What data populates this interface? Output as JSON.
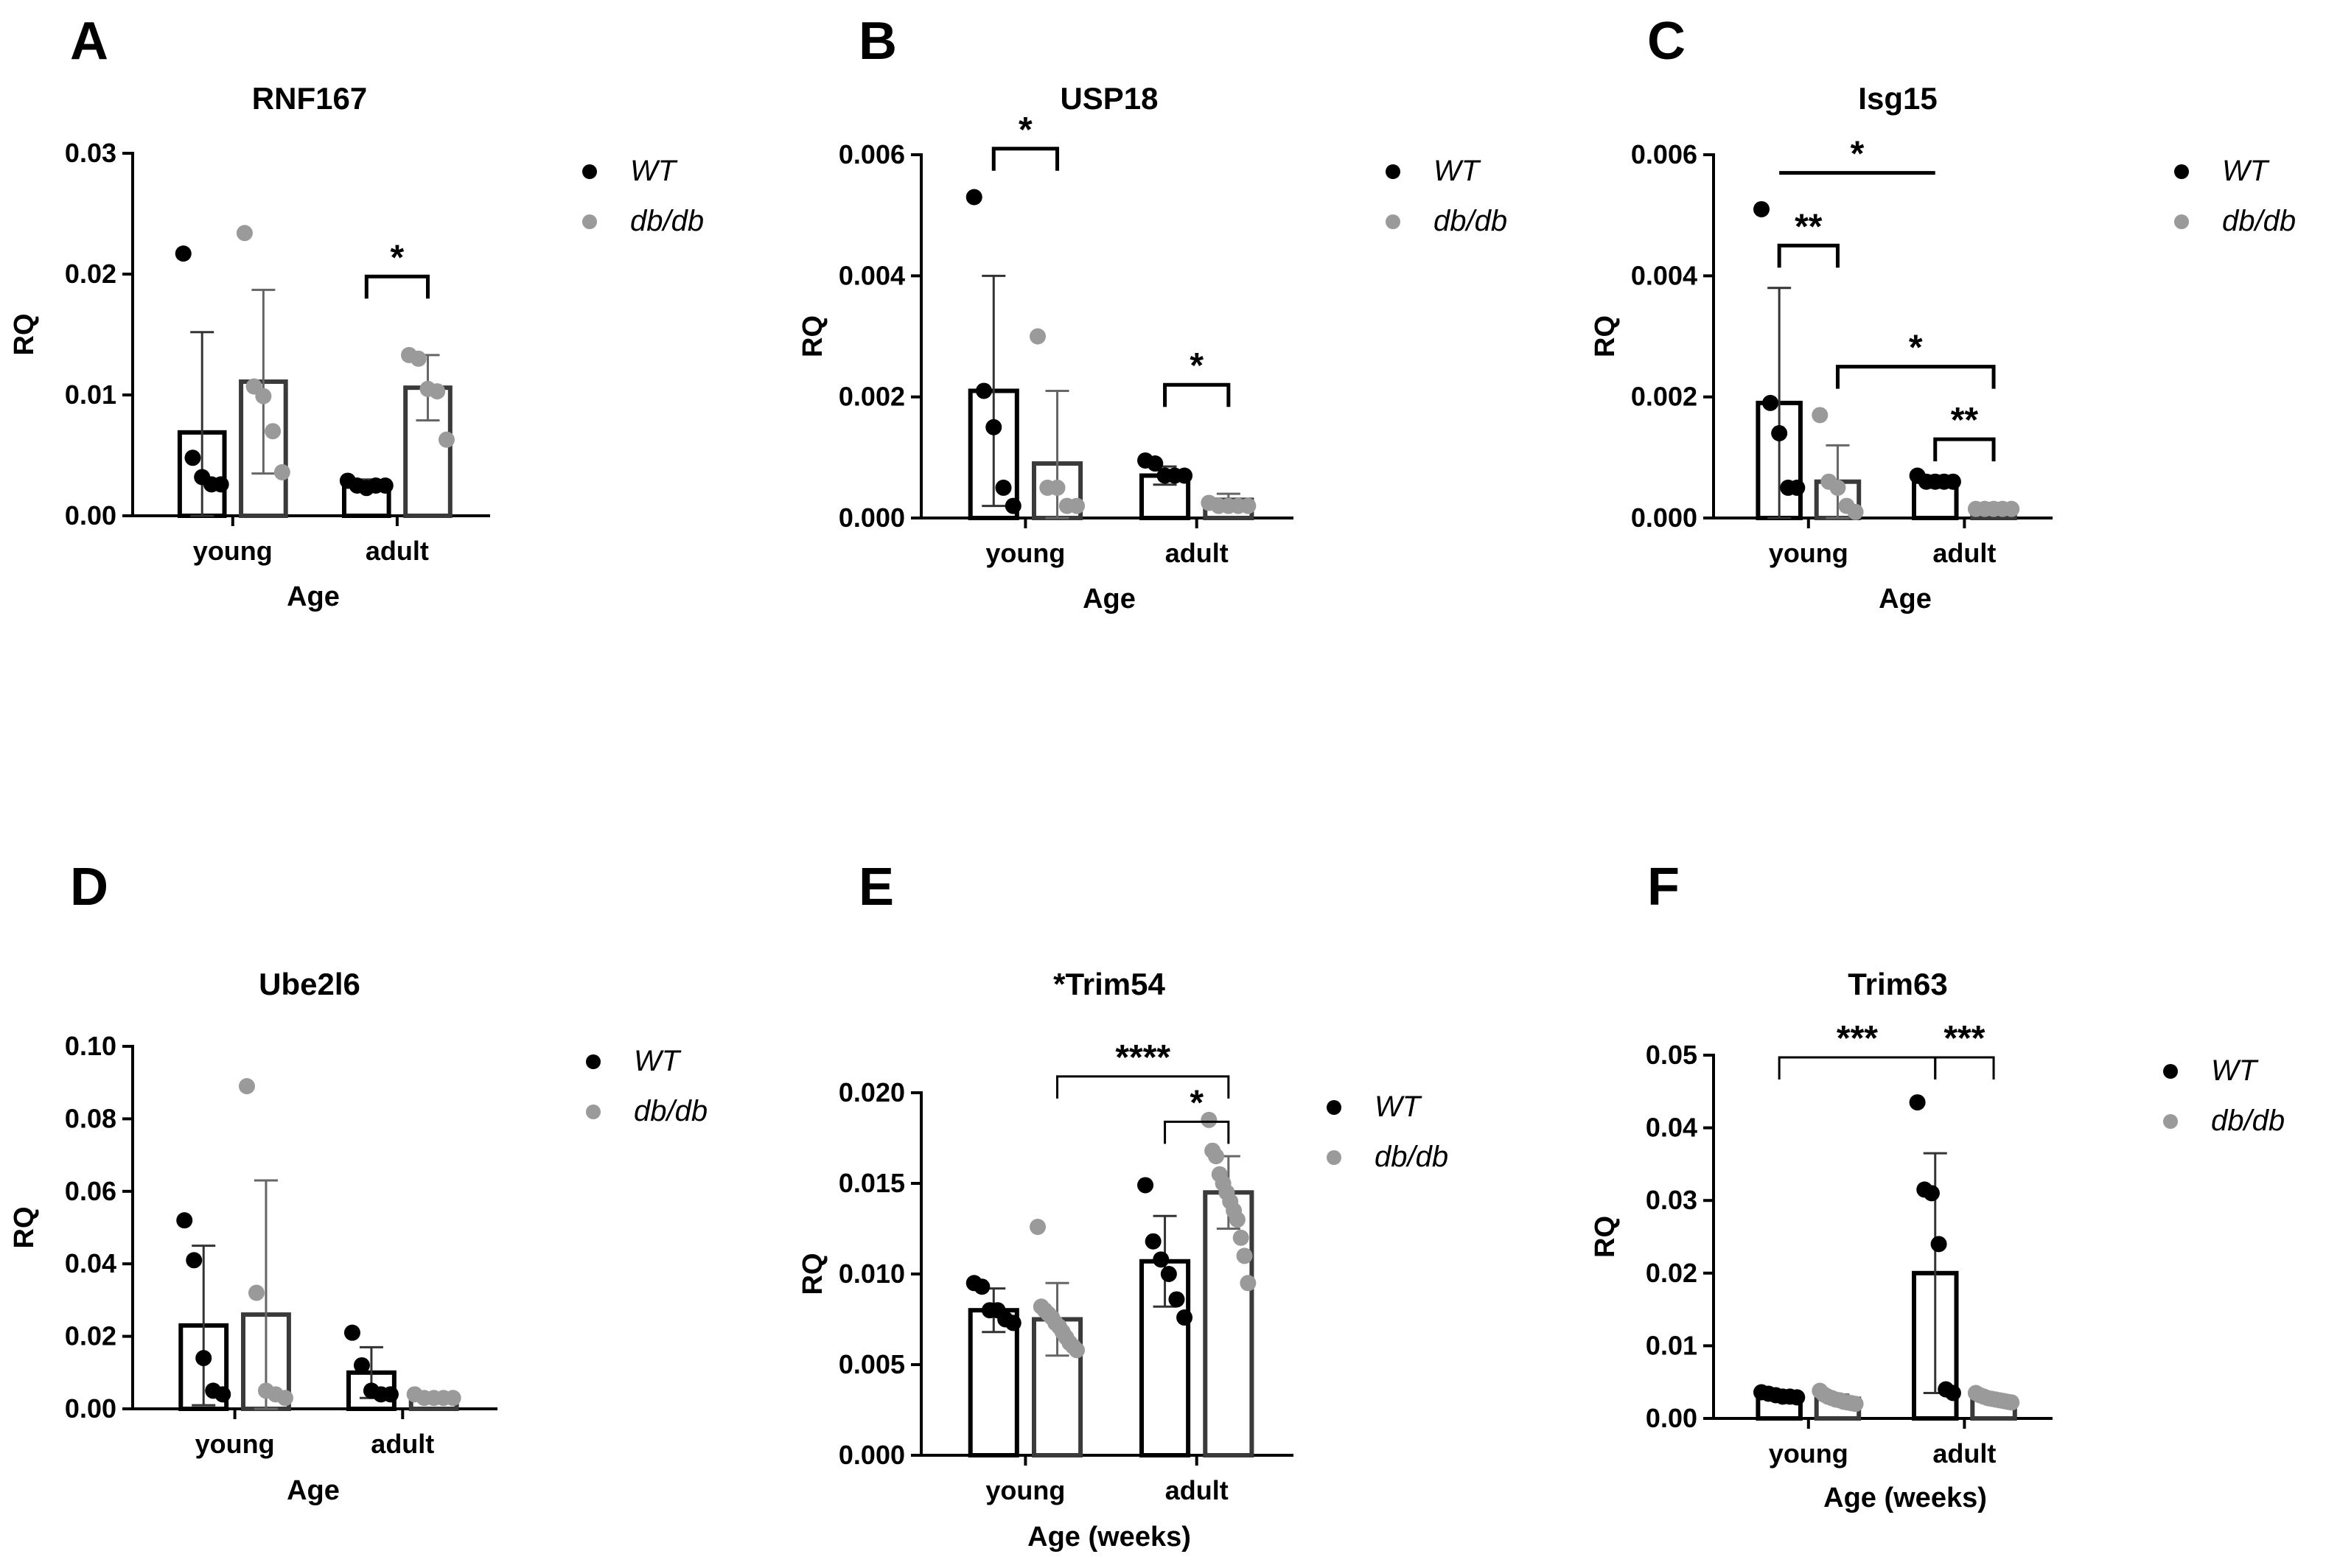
{
  "colors": {
    "wt": "#000000",
    "dbdb": "#9a9a9a",
    "wt_bar": "#000000",
    "dbdb_bar": "#3a3a3a"
  },
  "chart_data": [
    {
      "type": "bar",
      "letter": "A",
      "title": "RNF167",
      "xlabel": "Age",
      "ylabel": "RQ",
      "categories": [
        "young",
        "adult"
      ],
      "ylim": [
        0,
        0.03
      ],
      "yticks": [
        "0.00",
        "0.01",
        "0.02",
        "0.03"
      ],
      "ytick_values": [
        0,
        0.01,
        0.02,
        0.03
      ],
      "legend": [
        "WT",
        "db/db"
      ],
      "series": [
        {
          "name": "WT",
          "values": [
            0.0069,
            0.0026
          ],
          "errors": [
            0.0083,
            0.0004
          ],
          "points": [
            [
              0.0217,
              0.0048,
              0.0032,
              0.0026,
              0.0026
            ],
            [
              0.0029,
              0.0025,
              0.0023,
              0.0025,
              0.0025
            ]
          ]
        },
        {
          "name": "db/db",
          "values": [
            0.0111,
            0.0106
          ],
          "errors": [
            0.0076,
            0.0027
          ],
          "points": [
            [
              0.0234,
              0.0107,
              0.0099,
              0.007,
              0.0036
            ],
            [
              0.0133,
              0.013,
              0.0105,
              0.0103,
              0.0063
            ]
          ]
        }
      ],
      "sig": [
        {
          "label": "*",
          "from": [
            1,
            0
          ],
          "to": [
            1,
            1
          ],
          "y": 0.0198,
          "style": "bracket"
        }
      ]
    },
    {
      "type": "bar",
      "letter": "B",
      "title": "USP18",
      "xlabel": "Age",
      "ylabel": "RQ",
      "categories": [
        "young",
        "adult"
      ],
      "ylim": [
        0,
        0.006
      ],
      "yticks": [
        "0.000",
        "0.002",
        "0.004",
        "0.006"
      ],
      "ytick_values": [
        0,
        0.002,
        0.004,
        0.006
      ],
      "legend": [
        "WT",
        "db/db"
      ],
      "series": [
        {
          "name": "WT",
          "values": [
            0.0021,
            0.0007
          ],
          "errors": [
            0.0019,
            0.00015
          ],
          "points": [
            [
              0.0053,
              0.0021,
              0.0015,
              0.0005,
              0.0002
            ],
            [
              0.00095,
              0.0009,
              0.0007,
              0.0007,
              0.0007
            ]
          ]
        },
        {
          "name": "db/db",
          "values": [
            0.0009,
            0.0003
          ],
          "errors": [
            0.0012,
            0.0001
          ],
          "points": [
            [
              0.003,
              0.0005,
              0.0005,
              0.0002,
              0.0002
            ],
            [
              0.00025,
              0.0002,
              0.0002,
              0.0002,
              0.0002
            ]
          ]
        }
      ],
      "sig": [
        {
          "label": "*",
          "from": [
            0,
            0
          ],
          "to": [
            0,
            1
          ],
          "y": 0.0061,
          "style": "bracket"
        },
        {
          "label": "*",
          "from": [
            1,
            0
          ],
          "to": [
            1,
            1
          ],
          "y": 0.0022,
          "style": "bracket"
        }
      ]
    },
    {
      "type": "bar",
      "letter": "C",
      "title": "Isg15",
      "xlabel": "Age",
      "ylabel": "RQ",
      "categories": [
        "young",
        "adult"
      ],
      "ylim": [
        0,
        0.006
      ],
      "yticks": [
        "0.000",
        "0.002",
        "0.004",
        "0.006"
      ],
      "ytick_values": [
        0,
        0.002,
        0.004,
        0.006
      ],
      "legend": [
        "WT",
        "db/db"
      ],
      "series": [
        {
          "name": "WT",
          "values": [
            0.0019,
            0.0006
          ],
          "errors": [
            0.0019,
            0.0001
          ],
          "points": [
            [
              0.0051,
              0.0019,
              0.0014,
              0.0005,
              0.0005
            ],
            [
              0.0007,
              0.0006,
              0.0006,
              0.0006,
              0.0006
            ]
          ]
        },
        {
          "name": "db/db",
          "values": [
            0.0006,
            0.0002
          ],
          "errors": [
            0.0006,
            5e-05
          ],
          "points": [
            [
              0.0017,
              0.0006,
              0.0005,
              0.0002,
              0.0001
            ],
            [
              0.00015,
              0.00015,
              0.00015,
              0.00015,
              0.00015
            ]
          ]
        }
      ],
      "sig": [
        {
          "label": "*",
          "from": [
            0,
            0
          ],
          "to": [
            1,
            0
          ],
          "y": 0.0057,
          "style": "line"
        },
        {
          "label": "**",
          "from": [
            0,
            0
          ],
          "to": [
            0,
            1
          ],
          "y": 0.0045,
          "style": "bracket"
        },
        {
          "label": "*",
          "from": [
            0,
            1
          ],
          "to": [
            1,
            1
          ],
          "y": 0.0025,
          "style": "bracket"
        },
        {
          "label": "**",
          "from": [
            1,
            0
          ],
          "to": [
            1,
            1
          ],
          "y": 0.0013,
          "style": "bracket"
        }
      ]
    },
    {
      "type": "bar",
      "letter": "D",
      "title": "Ube2l6",
      "xlabel": "Age",
      "ylabel": "RQ",
      "categories": [
        "young",
        "adult"
      ],
      "ylim": [
        0,
        0.1
      ],
      "yticks": [
        "0.00",
        "0.02",
        "0.04",
        "0.06",
        "0.08",
        "0.10"
      ],
      "ytick_values": [
        0,
        0.02,
        0.04,
        0.06,
        0.08,
        0.1
      ],
      "legend": [
        "WT",
        "db/db"
      ],
      "series": [
        {
          "name": "WT",
          "values": [
            0.023,
            0.01
          ],
          "errors": [
            0.022,
            0.007
          ],
          "points": [
            [
              0.052,
              0.041,
              0.014,
              0.005,
              0.004
            ],
            [
              0.021,
              0.012,
              0.005,
              0.004,
              0.004
            ]
          ]
        },
        {
          "name": "db/db",
          "values": [
            0.026,
            0.003
          ],
          "errors": [
            0.037,
            0.001
          ],
          "points": [
            [
              0.089,
              0.032,
              0.005,
              0.004,
              0.003
            ],
            [
              0.004,
              0.003,
              0.003,
              0.003,
              0.003
            ]
          ]
        }
      ],
      "sig": []
    },
    {
      "type": "bar",
      "letter": "E",
      "title": "*Trim54",
      "xlabel": "Age (weeks)",
      "ylabel": "RQ",
      "categories": [
        "young",
        "adult"
      ],
      "ylim": [
        0,
        0.02
      ],
      "yticks": [
        "0.000",
        "0.005",
        "0.010",
        "0.015",
        "0.020"
      ],
      "ytick_values": [
        0,
        0.005,
        0.01,
        0.015,
        0.02
      ],
      "legend": [
        "WT",
        "db/db"
      ],
      "series": [
        {
          "name": "WT",
          "values": [
            0.008,
            0.0107
          ],
          "errors": [
            0.0012,
            0.0025
          ],
          "points": [
            [
              0.0095,
              0.0093,
              0.008,
              0.008,
              0.0075,
              0.0073
            ],
            [
              0.0149,
              0.0118,
              0.0108,
              0.01,
              0.0086,
              0.0076
            ]
          ]
        },
        {
          "name": "db/db",
          "values": [
            0.0075,
            0.0145
          ],
          "errors": [
            0.002,
            0.002
          ],
          "points": [
            [
              0.0126,
              0.0082,
              0.008,
              0.0078,
              0.0076,
              0.0073,
              0.0071,
              0.0068,
              0.0065,
              0.0062,
              0.006,
              0.0058
            ],
            [
              0.0185,
              0.0168,
              0.0165,
              0.0155,
              0.015,
              0.0145,
              0.014,
              0.0135,
              0.013,
              0.012,
              0.011,
              0.0095
            ]
          ]
        }
      ],
      "sig": [
        {
          "label": "****",
          "from": [
            0,
            1
          ],
          "to": [
            1,
            1
          ],
          "y": 0.0209,
          "style": "thin"
        },
        {
          "label": "*",
          "from": [
            1,
            0
          ],
          "to": [
            1,
            1
          ],
          "y": 0.0184,
          "style": "thin"
        }
      ]
    },
    {
      "type": "bar",
      "letter": "F",
      "title": "Trim63",
      "xlabel": "Age (weeks)",
      "ylabel": "RQ",
      "categories": [
        "young",
        "adult"
      ],
      "ylim": [
        0,
        0.05
      ],
      "yticks": [
        "0.00",
        "0.01",
        "0.02",
        "0.03",
        "0.04",
        "0.05"
      ],
      "ytick_values": [
        0,
        0.01,
        0.02,
        0.03,
        0.04,
        0.05
      ],
      "legend": [
        "WT",
        "db/db"
      ],
      "series": [
        {
          "name": "WT",
          "values": [
            0.0032,
            0.02
          ],
          "errors": [
            0.0005,
            0.0165
          ],
          "points": [
            [
              0.0036,
              0.0034,
              0.0032,
              0.003,
              0.003,
              0.0029
            ],
            [
              0.0435,
              0.0315,
              0.031,
              0.024,
              0.004,
              0.0035
            ]
          ]
        },
        {
          "name": "db/db",
          "values": [
            0.0027,
            0.0027
          ],
          "errors": [
            0.0006,
            0.0006
          ],
          "points": [
            [
              0.0038,
              0.0033,
              0.003,
              0.0028,
              0.0026,
              0.0025,
              0.0023,
              0.0022,
              0.0021,
              0.002
            ],
            [
              0.0035,
              0.0032,
              0.003,
              0.0028,
              0.0027,
              0.0026,
              0.0025,
              0.0024,
              0.0023,
              0.0022
            ]
          ]
        }
      ],
      "sig": [
        {
          "label": "***",
          "from": [
            0,
            0
          ],
          "to": [
            1,
            0
          ],
          "y": 0.0497,
          "style": "thin"
        },
        {
          "label": "***",
          "from": [
            1,
            0
          ],
          "to": [
            1,
            1
          ],
          "y": 0.0497,
          "style": "thin"
        }
      ]
    }
  ]
}
